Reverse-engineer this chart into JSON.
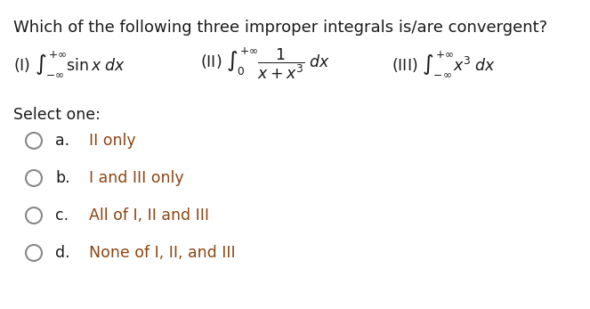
{
  "title": "Which of the following three improper integrals is/are convergent?",
  "title_fontsize": 13.0,
  "bg_color": "#ffffff",
  "text_color": "#1a1a1a",
  "option_text_color": "#8B4513",
  "option_letter_color": "#1a1a1a",
  "select_color": "#1a1a1a",
  "font_size": 12.5,
  "options": [
    {
      "letter": "a.",
      "text": "II only"
    },
    {
      "letter": "b.",
      "text": "I and III only"
    },
    {
      "letter": "c.",
      "text": "All of I, II and III"
    },
    {
      "letter": "d.",
      "text": "None of I, II, and III"
    }
  ]
}
